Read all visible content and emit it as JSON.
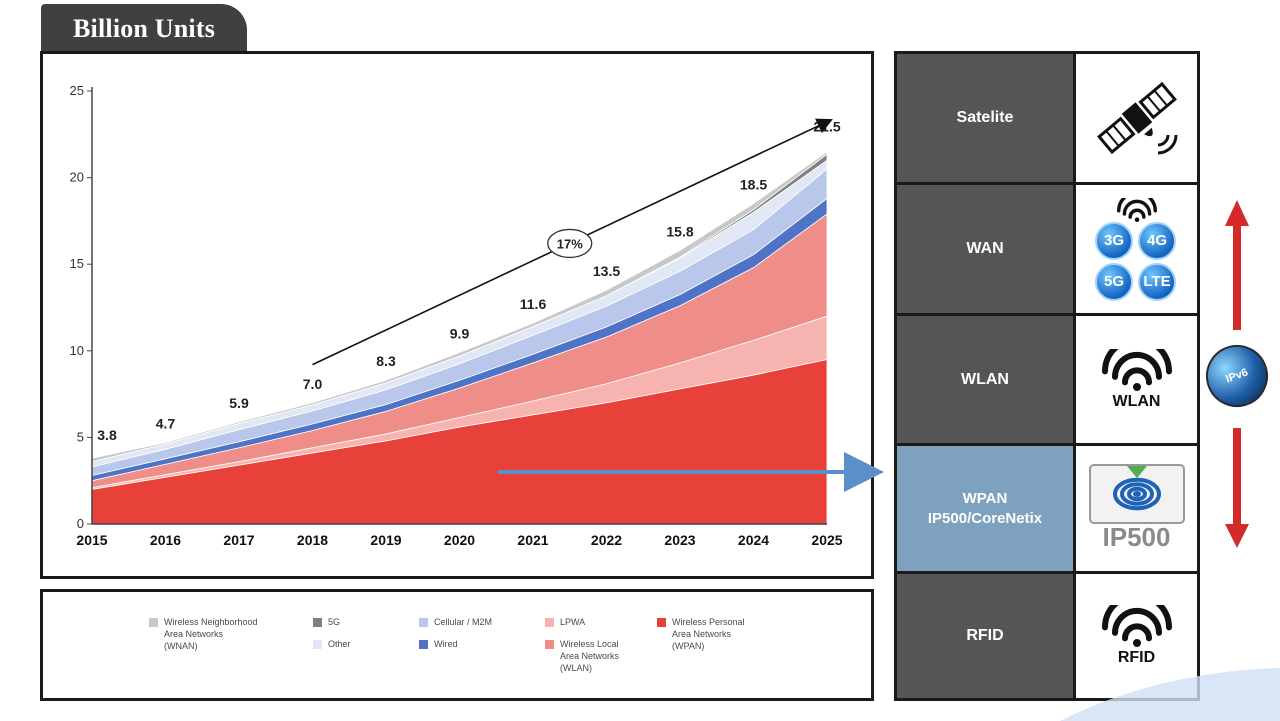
{
  "title": "Billion Units",
  "chart_data": {
    "type": "area",
    "x": [
      2015,
      2016,
      2017,
      2018,
      2019,
      2020,
      2021,
      2022,
      2023,
      2024,
      2025
    ],
    "ylim": [
      0,
      25
    ],
    "yticks": [
      0,
      5,
      10,
      15,
      20,
      25
    ],
    "totals": [
      3.8,
      4.7,
      5.9,
      7.0,
      8.3,
      9.9,
      11.6,
      13.5,
      15.8,
      18.5,
      21.5
    ],
    "growth_label": "17%",
    "series": [
      {
        "name": "Wireless Personal\nArea Networks\n(WPAN)",
        "color": "#e8413a",
        "values": [
          2.0,
          2.7,
          3.4,
          4.1,
          4.8,
          5.6,
          6.3,
          7.0,
          7.8,
          8.6,
          9.5
        ]
      },
      {
        "name": "LPWA",
        "color": "#f6b3b0",
        "values": [
          0.1,
          0.15,
          0.2,
          0.3,
          0.4,
          0.55,
          0.8,
          1.1,
          1.5,
          2.0,
          2.5
        ]
      },
      {
        "name": "Wireless Local\nArea Networks\n(WLAN)",
        "color": "#ef8d88",
        "values": [
          0.4,
          0.6,
          0.8,
          1.0,
          1.3,
          1.7,
          2.2,
          2.7,
          3.3,
          4.2,
          5.9
        ]
      },
      {
        "name": "Wired",
        "color": "#4f74c7",
        "values": [
          0.3,
          0.32,
          0.35,
          0.38,
          0.4,
          0.45,
          0.5,
          0.58,
          0.65,
          0.75,
          0.9
        ]
      },
      {
        "name": "Cellular / M2M",
        "color": "#b8c7ea",
        "values": [
          0.5,
          0.55,
          0.7,
          0.75,
          0.85,
          0.95,
          1.1,
          1.2,
          1.35,
          1.45,
          1.7
        ]
      },
      {
        "name": "Other",
        "color": "#e1e7f4",
        "values": [
          0.3,
          0.3,
          0.35,
          0.35,
          0.4,
          0.45,
          0.5,
          0.6,
          0.75,
          1.0,
          0.5
        ]
      },
      {
        "name": "5G",
        "color": "#808080",
        "values": [
          0,
          0,
          0,
          0,
          0,
          0,
          0,
          0,
          0.05,
          0.15,
          0.35
        ]
      },
      {
        "name": "Wireless Neighborhood\nArea Networks\n(WNAN)",
        "color": "#c8c8c8",
        "values": [
          0.2,
          0.08,
          0.1,
          0.12,
          0.15,
          0.2,
          0.2,
          0.32,
          0.4,
          0.35,
          0.15
        ]
      }
    ]
  },
  "legend": [
    {
      "label": "Wireless Neighborhood\nArea Networks\n(WNAN)",
      "color": "#c8c8c8"
    },
    {
      "label": "5G",
      "color": "#808080"
    },
    {
      "label": "Other",
      "color": "#e1e7f4"
    },
    {
      "label": "Cellular / M2M",
      "color": "#b8c7ea"
    },
    {
      "label": "Wired",
      "color": "#4f74c7"
    },
    {
      "label": "LPWA",
      "color": "#f6b3b0"
    },
    {
      "label": "Wireless Local\nArea Networks\n(WLAN)",
      "color": "#ef8d88"
    },
    {
      "label": "Wireless Personal\nArea Networks\n(WPAN)",
      "color": "#e8413a"
    }
  ],
  "tech_stack": [
    {
      "label": "Satelite",
      "icon": "satellite-icon"
    },
    {
      "label": "WAN",
      "icon": "cellular-network-icon",
      "badges": [
        "3G",
        "4G",
        "5G",
        "LTE"
      ]
    },
    {
      "label": "WLAN",
      "icon": "wifi-icon",
      "caption": "WLAN"
    },
    {
      "label": "WPAN\nIP500/CoreNetix",
      "icon": "ip500-logo-icon",
      "caption": "IP500",
      "highlight": true
    },
    {
      "label": "RFID",
      "icon": "wifi-icon",
      "caption": "RFID"
    }
  ],
  "globe_label": "IPv6",
  "colors": {
    "arrow_red": "#d42a2a",
    "arrow_blue": "#5b8fc7",
    "dark_cell": "#555555",
    "highlight_cell": "#7fa1c0"
  }
}
